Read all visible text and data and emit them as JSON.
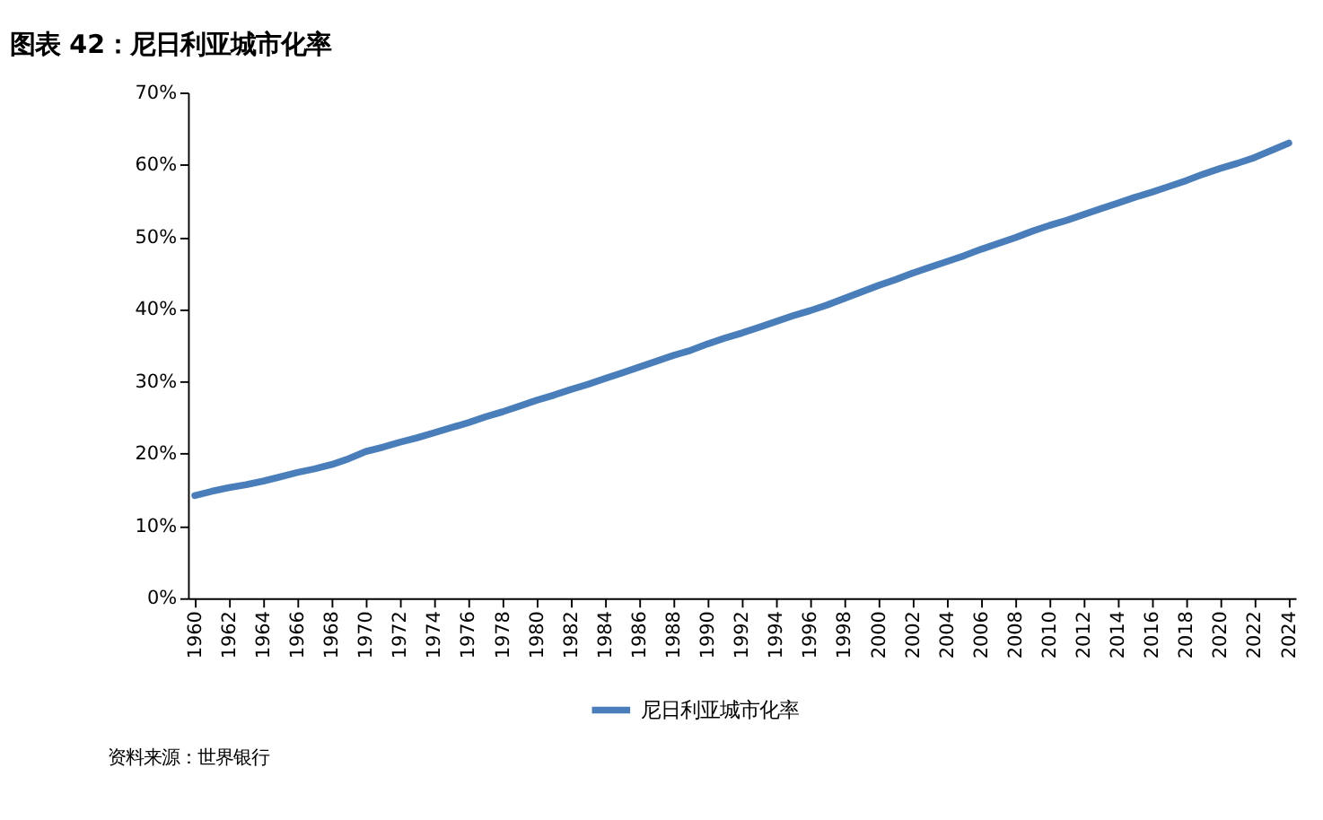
{
  "chart_data": {
    "type": "line",
    "title": "图表 42：尼日利亚城市化率",
    "categories": [
      "1960",
      null,
      "1962",
      null,
      "1964",
      null,
      "1966",
      null,
      "1968",
      null,
      "1970",
      null,
      "1972",
      null,
      "1974",
      null,
      "1976",
      null,
      "1978",
      null,
      "1980",
      null,
      "1982",
      null,
      "1984",
      null,
      "1986",
      null,
      "1988",
      null,
      "1990",
      null,
      "1992",
      null,
      "1994",
      null,
      "1996",
      null,
      "1998",
      null,
      "2000",
      null,
      "2002",
      null,
      "2004",
      null,
      "2006",
      null,
      "2008",
      null,
      "2010",
      null,
      "2012",
      null,
      "2014",
      null,
      "2016",
      null,
      "2018",
      null,
      "2020",
      null,
      "2022",
      null,
      "2024"
    ],
    "series": [
      {
        "name": "尼日利亚城市化率",
        "color": "#4a7ebb",
        "values": [
          14.2,
          14.8,
          15.3,
          15.7,
          16.2,
          16.8,
          17.4,
          17.9,
          18.5,
          19.3,
          20.3,
          20.9,
          21.6,
          22.2,
          22.9,
          23.6,
          24.3,
          25.1,
          25.8,
          26.6,
          27.4,
          28.1,
          28.9,
          29.6,
          30.4,
          31.2,
          32.0,
          32.8,
          33.6,
          34.3,
          35.2,
          36.0,
          36.7,
          37.5,
          38.3,
          39.1,
          39.8,
          40.6,
          41.5,
          42.4,
          43.3,
          44.1,
          45.0,
          45.8,
          46.6,
          47.4,
          48.3,
          49.1,
          49.9,
          50.8,
          51.6,
          52.3,
          53.1,
          53.9,
          54.7,
          55.5,
          56.2,
          57.0,
          57.8,
          58.7,
          59.5,
          60.2,
          61.0,
          62.0,
          63.0
        ]
      }
    ],
    "ylim": [
      0,
      70
    ],
    "yticks": [
      {
        "value": 0,
        "label": "0%"
      },
      {
        "value": 10,
        "label": "10%"
      },
      {
        "value": 20,
        "label": "20%"
      },
      {
        "value": 30,
        "label": "30%"
      },
      {
        "value": 40,
        "label": "40%"
      },
      {
        "value": 50,
        "label": "50%"
      },
      {
        "value": 60,
        "label": "60%"
      },
      {
        "value": 70,
        "label": "70%"
      }
    ],
    "legend": "bottom",
    "marker": "none",
    "line_style": "solid",
    "annotations": [
      "资料来源：世界银行"
    ]
  }
}
